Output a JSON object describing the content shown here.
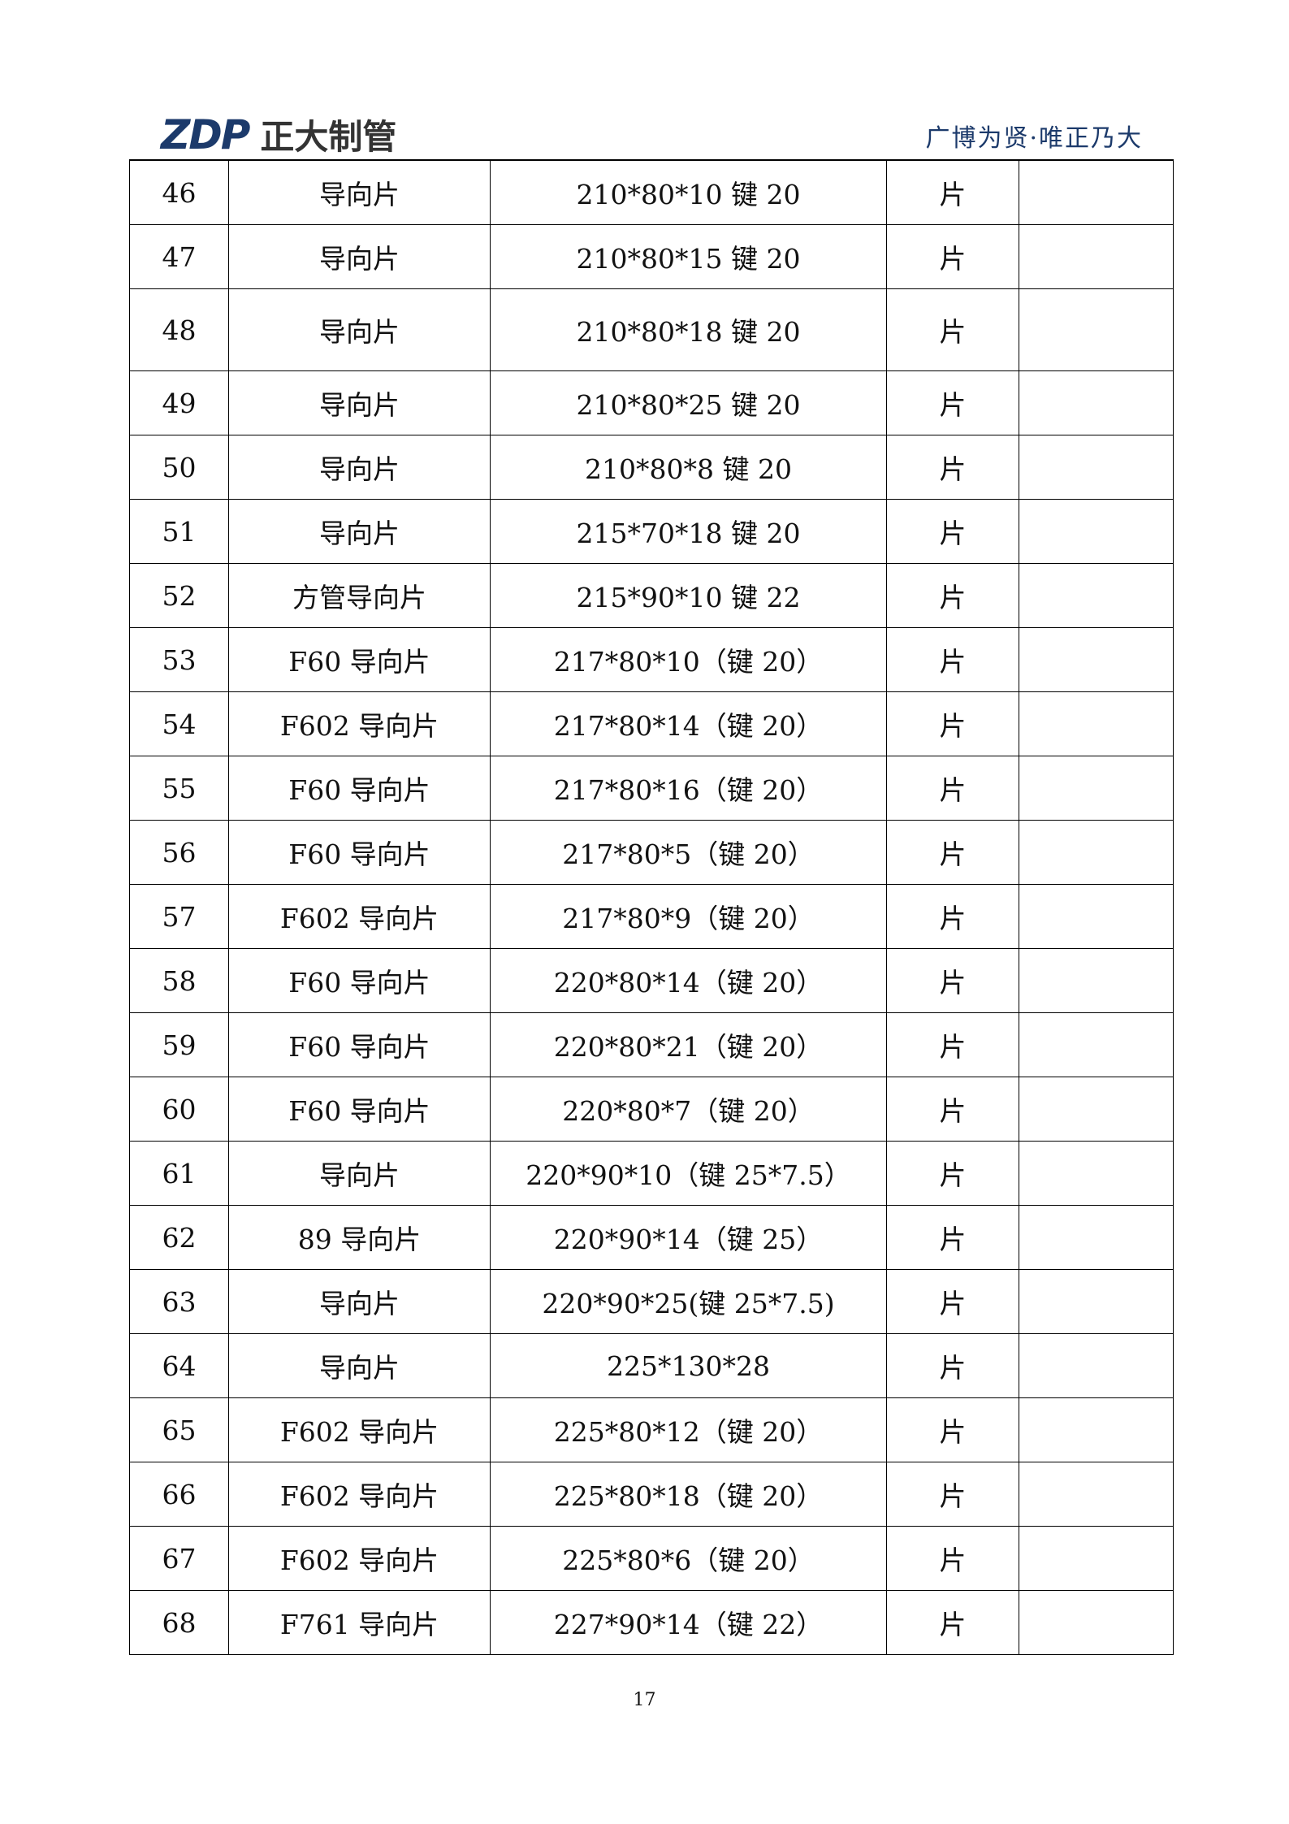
{
  "header": {
    "logo_mark": "ZDP",
    "logo_text": "正大制管",
    "slogan": "广博为贤·唯正乃大"
  },
  "table": {
    "rows": [
      {
        "no": "46",
        "name": "导向片",
        "spec": "210*80*10 键 20",
        "unit": "片",
        "remark": ""
      },
      {
        "no": "47",
        "name": "导向片",
        "spec": "210*80*15 键 20",
        "unit": "片",
        "remark": ""
      },
      {
        "no": "48",
        "name": "导向片",
        "spec": "210*80*18 键 20",
        "unit": "片",
        "remark": ""
      },
      {
        "no": "49",
        "name": "导向片",
        "spec": "210*80*25 键 20",
        "unit": "片",
        "remark": ""
      },
      {
        "no": "50",
        "name": "导向片",
        "spec": "210*80*8 键 20",
        "unit": "片",
        "remark": ""
      },
      {
        "no": "51",
        "name": "导向片",
        "spec": "215*70*18 键 20",
        "unit": "片",
        "remark": ""
      },
      {
        "no": "52",
        "name": "方管导向片",
        "spec": "215*90*10 键 22",
        "unit": "片",
        "remark": ""
      },
      {
        "no": "53",
        "name": "F60 导向片",
        "spec": "217*80*10（键 20）",
        "unit": "片",
        "remark": ""
      },
      {
        "no": "54",
        "name": "F602 导向片",
        "spec": "217*80*14（键 20）",
        "unit": "片",
        "remark": ""
      },
      {
        "no": "55",
        "name": "F60 导向片",
        "spec": "217*80*16（键 20）",
        "unit": "片",
        "remark": ""
      },
      {
        "no": "56",
        "name": "F60 导向片",
        "spec": "217*80*5（键 20）",
        "unit": "片",
        "remark": ""
      },
      {
        "no": "57",
        "name": "F602 导向片",
        "spec": "217*80*9（键 20）",
        "unit": "片",
        "remark": ""
      },
      {
        "no": "58",
        "name": "F60 导向片",
        "spec": "220*80*14（键 20）",
        "unit": "片",
        "remark": ""
      },
      {
        "no": "59",
        "name": "F60 导向片",
        "spec": "220*80*21（键 20）",
        "unit": "片",
        "remark": ""
      },
      {
        "no": "60",
        "name": "F60 导向片",
        "spec": "220*80*7（键 20）",
        "unit": "片",
        "remark": ""
      },
      {
        "no": "61",
        "name": "导向片",
        "spec": "220*90*10（键 25*7.5）",
        "unit": "片",
        "remark": ""
      },
      {
        "no": "62",
        "name": "89 导向片",
        "spec": "220*90*14（键 25）",
        "unit": "片",
        "remark": ""
      },
      {
        "no": "63",
        "name": "导向片",
        "spec": "220*90*25(键 25*7.5)",
        "unit": "片",
        "remark": ""
      },
      {
        "no": "64",
        "name": "导向片",
        "spec": "225*130*28",
        "unit": "片",
        "remark": ""
      },
      {
        "no": "65",
        "name": "F602 导向片",
        "spec": "225*80*12（键 20）",
        "unit": "片",
        "remark": ""
      },
      {
        "no": "66",
        "name": "F602 导向片",
        "spec": "225*80*18（键 20）",
        "unit": "片",
        "remark": ""
      },
      {
        "no": "67",
        "name": "F602 导向片",
        "spec": "225*80*6（键 20）",
        "unit": "片",
        "remark": ""
      },
      {
        "no": "68",
        "name": "F761 导向片",
        "spec": "227*90*14（键 22）",
        "unit": "片",
        "remark": ""
      }
    ]
  },
  "footer": {
    "page_number": "17"
  }
}
